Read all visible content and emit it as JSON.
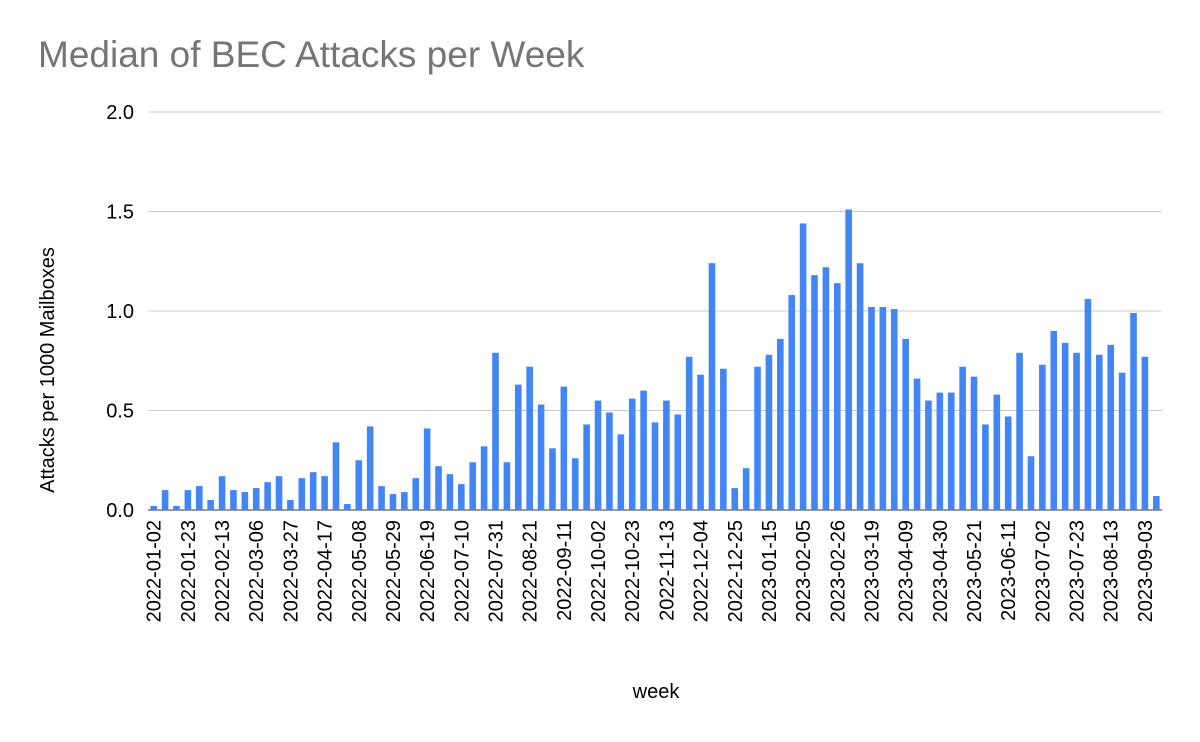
{
  "chart_data": {
    "type": "bar",
    "title": "Median of BEC Attacks per Week",
    "xlabel": "week",
    "ylabel": "Attacks per 1000 Mailboxes",
    "ylim": [
      0,
      2.0
    ],
    "yticks": [
      "0.0",
      "0.5",
      "1.0",
      "1.5",
      "2.0"
    ],
    "grid": true,
    "legend": "none",
    "bar_color": "#4285f4",
    "x_tick_labels": [
      "2022-01-02",
      "2022-01-23",
      "2022-02-13",
      "2022-03-06",
      "2022-03-27",
      "2022-04-17",
      "2022-05-08",
      "2022-05-29",
      "2022-06-19",
      "2022-07-10",
      "2022-07-31",
      "2022-08-21",
      "2022-09-11",
      "2022-10-02",
      "2022-10-23",
      "2022-11-13",
      "2022-12-04",
      "2022-12-25",
      "2023-01-15",
      "2023-02-05",
      "2023-02-26",
      "2023-03-19",
      "2023-04-09",
      "2023-04-30",
      "2023-05-21",
      "2023-06-11",
      "2023-07-02",
      "2023-07-23",
      "2023-08-13",
      "2023-09-03"
    ],
    "tick_every": 3,
    "values": [
      0.02,
      0.1,
      0.02,
      0.1,
      0.12,
      0.05,
      0.17,
      0.1,
      0.09,
      0.11,
      0.14,
      0.17,
      0.05,
      0.16,
      0.19,
      0.17,
      0.34,
      0.03,
      0.25,
      0.42,
      0.12,
      0.08,
      0.09,
      0.16,
      0.41,
      0.22,
      0.18,
      0.13,
      0.24,
      0.32,
      0.79,
      0.24,
      0.63,
      0.72,
      0.53,
      0.31,
      0.62,
      0.26,
      0.43,
      0.55,
      0.49,
      0.38,
      0.56,
      0.6,
      0.44,
      0.55,
      0.48,
      0.77,
      0.68,
      1.24,
      0.71,
      0.11,
      0.21,
      0.72,
      0.78,
      0.86,
      1.08,
      1.44,
      1.18,
      1.22,
      1.14,
      1.51,
      1.24,
      1.02,
      1.02,
      1.01,
      0.86,
      0.66,
      0.55,
      0.59,
      0.59,
      0.72,
      0.67,
      0.43,
      0.58,
      0.47,
      0.79,
      0.27,
      0.73,
      0.9,
      0.84,
      0.79,
      1.06,
      0.78,
      0.83,
      0.69,
      0.99,
      0.77,
      0.07
    ]
  }
}
